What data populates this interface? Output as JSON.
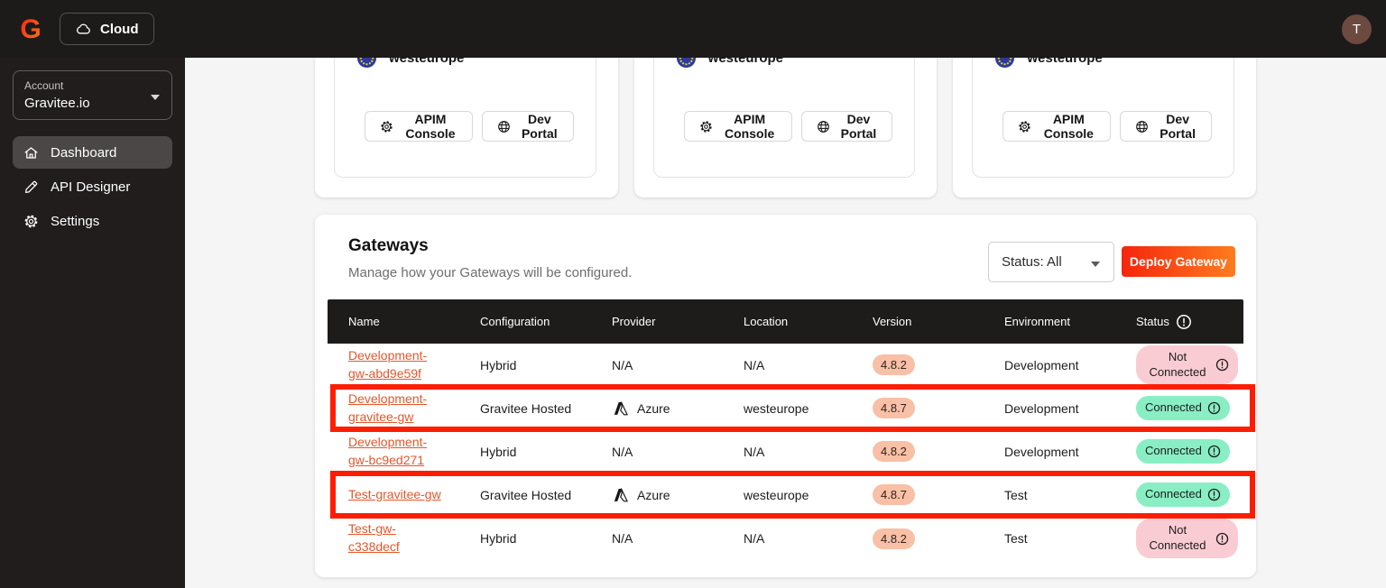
{
  "topbar": {
    "cloud_button": "Cloud",
    "avatar_initial": "T"
  },
  "sidebar": {
    "account_label": "Account",
    "account_value": "Gravitee.io",
    "items": [
      {
        "label": "Dashboard",
        "icon": "home-icon",
        "active": true
      },
      {
        "label": "API Designer",
        "icon": "pen-icon",
        "active": false
      },
      {
        "label": "Settings",
        "icon": "gear-icon",
        "active": false
      }
    ]
  },
  "region_cards": [
    {
      "region": "westeurope",
      "apim_button": "APIM Console",
      "devportal_button": "Dev Portal"
    },
    {
      "region": "westeurope",
      "apim_button": "APIM Console",
      "devportal_button": "Dev Portal"
    },
    {
      "region": "westeurope",
      "apim_button": "APIM Console",
      "devportal_button": "Dev Portal"
    }
  ],
  "gateways": {
    "title": "Gateways",
    "subtitle": "Manage how your Gateways will be configured.",
    "status_filter": "Status: All",
    "deploy_button": "Deploy Gateway",
    "columns": [
      "Name",
      "Configuration",
      "Provider",
      "Location",
      "Version",
      "Environment",
      "Status"
    ],
    "rows": [
      {
        "name": "Development-gw-abd9e59f",
        "name_lines": [
          "Development-",
          "gw-abd9e59f"
        ],
        "configuration": "Hybrid",
        "provider": "N/A",
        "location": "N/A",
        "version": "4.8.2",
        "environment": "Development",
        "status": "Not Connected",
        "highlighted": false
      },
      {
        "name": "Development-gravitee-gw",
        "name_lines": [
          "Development-",
          "gravitee-gw"
        ],
        "configuration": "Gravitee Hosted",
        "provider": "Azure",
        "location": "westeurope",
        "version": "4.8.7",
        "environment": "Development",
        "status": "Connected",
        "highlighted": true
      },
      {
        "name": "Development-gw-bc9ed271",
        "name_lines": [
          "Development-",
          "gw-bc9ed271"
        ],
        "configuration": "Hybrid",
        "provider": "N/A",
        "location": "N/A",
        "version": "4.8.2",
        "environment": "Development",
        "status": "Connected",
        "highlighted": false
      },
      {
        "name": "Test-gravitee-gw",
        "name_lines": [
          "Test-gravitee-gw"
        ],
        "configuration": "Gravitee Hosted",
        "provider": "Azure",
        "location": "westeurope",
        "version": "4.8.7",
        "environment": "Test",
        "status": "Connected",
        "highlighted": true
      },
      {
        "name": "Test-gw-c338decf",
        "name_lines": [
          "Test-gw-",
          "c338decf"
        ],
        "configuration": "Hybrid",
        "provider": "N/A",
        "location": "N/A",
        "version": "4.8.2",
        "environment": "Test",
        "status": "Not Connected",
        "highlighted": false
      }
    ]
  },
  "icons": {
    "brand": "gravitee-logo",
    "topbar": "cloud-icon",
    "region": "eu-flag-icon",
    "provider": "azure-icon",
    "status": "exclamation-circle-icon"
  },
  "colors": {
    "highlight": "#fe1d02",
    "link": "#e4572c",
    "connected_bg": "#89eec4",
    "not_connected_bg": "#f9ccd3",
    "version_badge_bg": "#f8c0a6",
    "deploy_start": "#f5250d",
    "deploy_end": "#ff7c1e",
    "avatar_bg": "#6d4a40",
    "brand_start": "#f2220c",
    "brand_end": "#ff7b1c"
  }
}
